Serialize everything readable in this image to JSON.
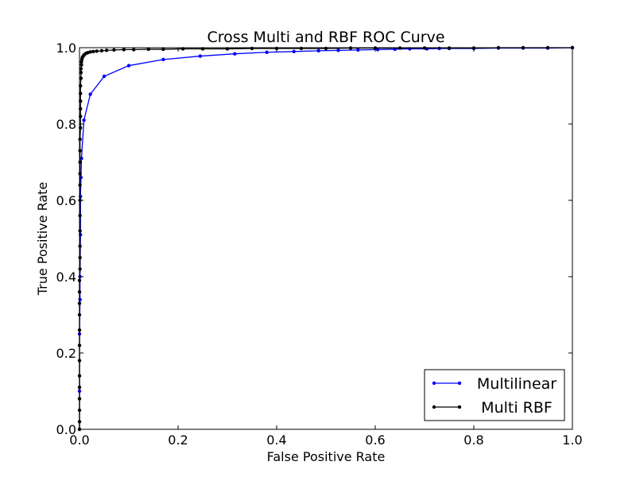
{
  "chart_data": {
    "type": "line",
    "title": "Cross Multi and RBF ROC Curve",
    "xlabel": "False Positive Rate",
    "ylabel": "True Positive Rate",
    "xlim": [
      0.0,
      1.0
    ],
    "ylim": [
      0.0,
      1.0
    ],
    "xticks": [
      "0.0",
      "0.2",
      "0.4",
      "0.6",
      "0.8",
      "1.0"
    ],
    "yticks": [
      "0.0",
      "0.2",
      "0.4",
      "0.6",
      "0.8",
      "1.0"
    ],
    "grid": false,
    "legend_position": "bottom-right",
    "series": [
      {
        "name": "Multilinear",
        "color": "#0000ff",
        "x": [
          0.0,
          0.0,
          0.0,
          0.001,
          0.001,
          0.002,
          0.002,
          0.003,
          0.004,
          0.009,
          0.022,
          0.05,
          0.1,
          0.17,
          0.245,
          0.315,
          0.38,
          0.435,
          0.485,
          0.525,
          0.565,
          0.605,
          0.64,
          0.67,
          0.705,
          0.73,
          0.75,
          0.8,
          0.85,
          0.9,
          0.95,
          1.0
        ],
        "y": [
          0.0,
          0.1,
          0.25,
          0.34,
          0.4,
          0.51,
          0.61,
          0.66,
          0.71,
          0.81,
          0.878,
          0.925,
          0.953,
          0.969,
          0.978,
          0.984,
          0.988,
          0.99,
          0.992,
          0.993,
          0.994,
          0.995,
          0.996,
          0.997,
          0.997,
          0.998,
          0.998,
          0.998,
          0.999,
          0.999,
          0.999,
          1.0
        ]
      },
      {
        "name": "Multi RBF",
        "color": "#000000",
        "x": [
          0.0,
          0.0,
          0.0,
          0.0,
          0.0,
          0.0,
          0.0,
          0.0,
          0.0,
          0.0,
          0.0,
          0.0,
          0.0,
          0.001,
          0.001,
          0.001,
          0.001,
          0.001,
          0.001,
          0.001,
          0.001,
          0.001,
          0.001,
          0.001,
          0.002,
          0.002,
          0.002,
          0.002,
          0.002,
          0.002,
          0.003,
          0.003,
          0.003,
          0.004,
          0.004,
          0.005,
          0.006,
          0.008,
          0.01,
          0.013,
          0.017,
          0.022,
          0.028,
          0.035,
          0.045,
          0.055,
          0.07,
          0.09,
          0.11,
          0.14,
          0.17,
          0.21,
          0.25,
          0.3,
          0.35,
          0.4,
          0.45,
          0.5,
          0.55,
          0.6,
          0.65,
          0.7,
          0.75,
          0.8,
          0.85,
          0.9,
          0.95,
          1.0
        ],
        "y": [
          0.0,
          0.02,
          0.05,
          0.08,
          0.11,
          0.14,
          0.18,
          0.22,
          0.26,
          0.3,
          0.33,
          0.36,
          0.39,
          0.42,
          0.45,
          0.48,
          0.52,
          0.56,
          0.6,
          0.64,
          0.67,
          0.7,
          0.73,
          0.76,
          0.79,
          0.82,
          0.84,
          0.86,
          0.88,
          0.9,
          0.92,
          0.935,
          0.945,
          0.955,
          0.963,
          0.97,
          0.975,
          0.979,
          0.982,
          0.985,
          0.987,
          0.989,
          0.99,
          0.991,
          0.992,
          0.993,
          0.994,
          0.995,
          0.995,
          0.996,
          0.996,
          0.997,
          0.997,
          0.997,
          0.998,
          0.998,
          0.998,
          0.998,
          0.999,
          0.999,
          0.999,
          0.999,
          0.999,
          0.999,
          1.0,
          1.0,
          1.0,
          1.0
        ]
      }
    ]
  }
}
